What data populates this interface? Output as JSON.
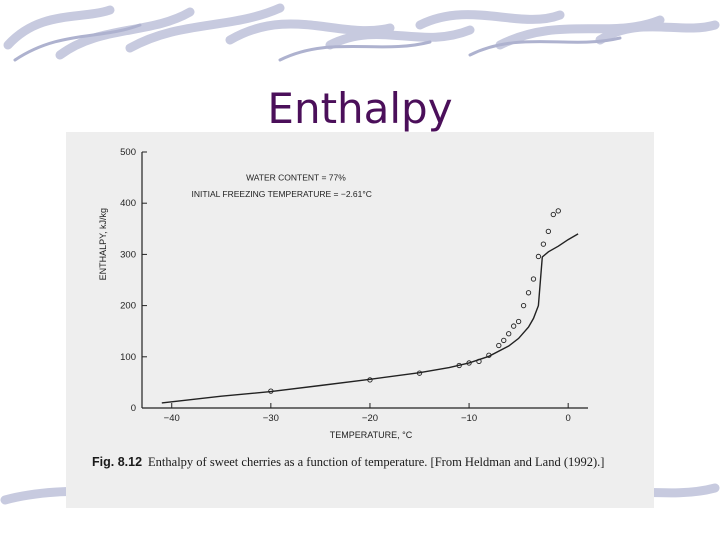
{
  "slide": {
    "title": "Enthalpy"
  },
  "figure": {
    "caption_label": "Fig. 8.12",
    "caption_text": "Enthalpy of sweet cherries as a function of temperature. [From Heldman and Land (1992).]"
  },
  "chart_data": {
    "type": "scatter",
    "title": "",
    "xlabel": "TEMPERATURE, °C",
    "ylabel": "ENTHALPY, kJ/kg",
    "xlim": [
      -43,
      2
    ],
    "ylim": [
      0,
      500
    ],
    "x_ticks": [
      -40,
      -30,
      -20,
      -10,
      0
    ],
    "x_tick_labels": [
      "−40",
      "−30",
      "−20",
      "−10",
      "0"
    ],
    "y_ticks": [
      0,
      100,
      200,
      300,
      400,
      500
    ],
    "y_tick_labels": [
      "0",
      "100",
      "200",
      "300",
      "400",
      "500"
    ],
    "grid": false,
    "annotations": [
      "WATER CONTENT = 77%",
      "INITIAL FREEZING TEMPERATURE = −2.61°C"
    ],
    "series": [
      {
        "kind": "line",
        "x": [
          -41,
          -35,
          -30,
          -25,
          -20,
          -15,
          -12,
          -10,
          -8,
          -6,
          -5,
          -4,
          -3.5,
          -3,
          -2.61,
          -2,
          -1,
          0,
          1
        ],
        "y": [
          10,
          23,
          32,
          44,
          56,
          69,
          79,
          88,
          101,
          121,
          136,
          158,
          175,
          200,
          295,
          305,
          316,
          329,
          340
        ]
      },
      {
        "kind": "points",
        "x": [
          -30,
          -20,
          -15,
          -11,
          -10,
          -9,
          -8,
          -7,
          -6.5,
          -6,
          -5.5,
          -5,
          -4.5,
          -4,
          -3.5,
          -3,
          -2.5,
          -2,
          -1.5,
          -1
        ],
        "y": [
          33,
          55,
          68,
          83,
          88,
          91,
          103,
          122,
          132,
          145,
          160,
          169,
          200,
          225,
          252,
          296,
          320,
          345,
          378,
          385
        ]
      }
    ]
  }
}
